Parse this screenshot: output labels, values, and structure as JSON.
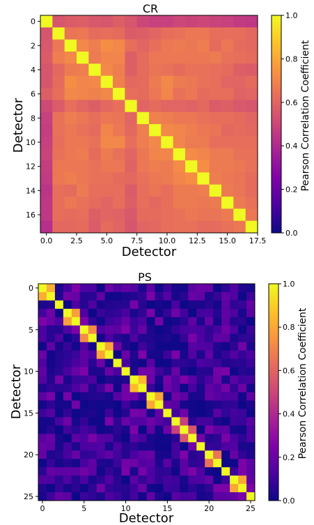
{
  "chart_data": [
    {
      "type": "heatmap",
      "title": "CR",
      "xlabel": "Detector",
      "ylabel": "Detector",
      "n": 18,
      "x_ticks": [
        "0.0",
        "2.5",
        "5.0",
        "7.5",
        "10.0",
        "12.5",
        "15.0",
        "17.5"
      ],
      "x_tick_values": [
        0,
        2.5,
        5,
        7.5,
        10,
        12.5,
        15,
        17.5
      ],
      "y_ticks": [
        "0",
        "2",
        "4",
        "6",
        "8",
        "10",
        "12",
        "14",
        "16"
      ],
      "y_tick_values": [
        0,
        2,
        4,
        6,
        8,
        10,
        12,
        14,
        16
      ],
      "colorbar": {
        "label": "Pearson Correlation Coefficient",
        "range": [
          0,
          1
        ],
        "ticks": [
          "0.0",
          "0.2",
          "0.4",
          "0.6",
          "0.8",
          "1.0"
        ]
      },
      "colormap": "plasma",
      "matrix": [
        [
          1.0,
          0.55,
          0.57,
          0.58,
          0.56,
          0.55,
          0.58,
          0.55,
          0.5,
          0.48,
          0.48,
          0.5,
          0.49,
          0.5,
          0.49,
          0.48,
          0.46,
          0.45
        ],
        [
          0.55,
          1.0,
          0.65,
          0.66,
          0.62,
          0.63,
          0.62,
          0.57,
          0.58,
          0.6,
          0.63,
          0.64,
          0.66,
          0.66,
          0.63,
          0.63,
          0.63,
          0.61
        ],
        [
          0.56,
          0.66,
          1.0,
          0.71,
          0.68,
          0.73,
          0.71,
          0.63,
          0.6,
          0.63,
          0.66,
          0.67,
          0.66,
          0.68,
          0.62,
          0.66,
          0.62,
          0.61
        ],
        [
          0.57,
          0.68,
          0.71,
          1.0,
          0.67,
          0.7,
          0.7,
          0.58,
          0.62,
          0.66,
          0.66,
          0.66,
          0.66,
          0.66,
          0.67,
          0.64,
          0.63,
          0.62
        ],
        [
          0.55,
          0.61,
          0.67,
          0.68,
          1.0,
          0.71,
          0.68,
          0.58,
          0.62,
          0.65,
          0.64,
          0.62,
          0.64,
          0.64,
          0.63,
          0.62,
          0.58,
          0.57
        ],
        [
          0.55,
          0.62,
          0.73,
          0.7,
          0.71,
          1.0,
          0.69,
          0.61,
          0.62,
          0.67,
          0.71,
          0.67,
          0.66,
          0.64,
          0.63,
          0.6,
          0.6,
          0.62
        ],
        [
          0.58,
          0.63,
          0.71,
          0.7,
          0.69,
          0.71,
          1.0,
          0.63,
          0.62,
          0.66,
          0.7,
          0.64,
          0.66,
          0.62,
          0.63,
          0.63,
          0.59,
          0.6
        ],
        [
          0.51,
          0.57,
          0.63,
          0.6,
          0.58,
          0.61,
          0.63,
          1.0,
          0.6,
          0.62,
          0.6,
          0.6,
          0.59,
          0.61,
          0.57,
          0.58,
          0.56,
          0.55
        ],
        [
          0.48,
          0.64,
          0.68,
          0.66,
          0.63,
          0.66,
          0.65,
          0.6,
          1.0,
          0.69,
          0.68,
          0.66,
          0.66,
          0.64,
          0.63,
          0.63,
          0.62,
          0.6
        ],
        [
          0.47,
          0.64,
          0.66,
          0.64,
          0.62,
          0.7,
          0.66,
          0.61,
          0.68,
          1.0,
          0.71,
          0.7,
          0.68,
          0.66,
          0.65,
          0.61,
          0.62,
          0.61
        ],
        [
          0.48,
          0.63,
          0.66,
          0.66,
          0.64,
          0.71,
          0.71,
          0.63,
          0.68,
          0.71,
          1.0,
          0.7,
          0.67,
          0.67,
          0.63,
          0.63,
          0.63,
          0.63
        ],
        [
          0.49,
          0.64,
          0.66,
          0.67,
          0.62,
          0.67,
          0.64,
          0.6,
          0.66,
          0.7,
          0.7,
          1.0,
          0.72,
          0.7,
          0.67,
          0.67,
          0.64,
          0.64
        ],
        [
          0.47,
          0.66,
          0.66,
          0.66,
          0.64,
          0.66,
          0.66,
          0.59,
          0.66,
          0.68,
          0.67,
          0.72,
          1.0,
          0.73,
          0.67,
          0.67,
          0.66,
          0.64
        ],
        [
          0.46,
          0.66,
          0.68,
          0.66,
          0.64,
          0.64,
          0.62,
          0.61,
          0.64,
          0.66,
          0.67,
          0.7,
          0.73,
          1.0,
          0.68,
          0.66,
          0.65,
          0.62
        ],
        [
          0.44,
          0.63,
          0.62,
          0.67,
          0.63,
          0.63,
          0.63,
          0.57,
          0.63,
          0.65,
          0.63,
          0.67,
          0.67,
          0.68,
          1.0,
          0.67,
          0.65,
          0.62
        ],
        [
          0.45,
          0.63,
          0.66,
          0.64,
          0.62,
          0.6,
          0.63,
          0.58,
          0.63,
          0.61,
          0.63,
          0.67,
          0.67,
          0.66,
          0.67,
          1.0,
          0.67,
          0.64
        ],
        [
          0.45,
          0.63,
          0.62,
          0.63,
          0.58,
          0.6,
          0.59,
          0.56,
          0.62,
          0.62,
          0.63,
          0.64,
          0.66,
          0.65,
          0.65,
          0.67,
          1.0,
          0.66
        ],
        [
          0.42,
          0.61,
          0.61,
          0.62,
          0.57,
          0.62,
          0.6,
          0.55,
          0.6,
          0.61,
          0.63,
          0.64,
          0.64,
          0.62,
          0.62,
          0.64,
          0.66,
          1.0
        ]
      ]
    },
    {
      "type": "heatmap",
      "title": "PS",
      "xlabel": "Detector",
      "ylabel": "Detector",
      "n": 26,
      "x_ticks": [
        "0",
        "5",
        "10",
        "15",
        "20",
        "25"
      ],
      "x_tick_values": [
        0,
        5,
        10,
        15,
        20,
        25
      ],
      "y_ticks": [
        "0",
        "5",
        "10",
        "15",
        "20",
        "25"
      ],
      "y_tick_values": [
        0,
        5,
        10,
        15,
        20,
        25
      ],
      "colorbar": {
        "label": "Pearson Correlation Coefficient",
        "range": [
          0,
          1
        ],
        "ticks": [
          "0.0",
          "0.2",
          "0.4",
          "0.6",
          "0.8",
          "1.0"
        ]
      },
      "colormap": "plasma",
      "blocks": [
        {
          "pair": [
            0,
            1
          ],
          "value": 0.82
        },
        {
          "pair": [
            3,
            4
          ],
          "value": 0.78
        },
        {
          "pair": [
            5,
            6
          ],
          "value": 0.72
        },
        {
          "pair": [
            7,
            8
          ],
          "value": 0.8
        },
        {
          "pair": [
            11,
            12
          ],
          "value": 0.85
        },
        {
          "pair": [
            13,
            14
          ],
          "value": 0.8
        },
        {
          "pair": [
            16,
            17
          ],
          "value": 0.48
        },
        {
          "pair": [
            17,
            18
          ],
          "value": 0.55
        },
        {
          "pair": [
            20,
            21
          ],
          "value": 0.65
        },
        {
          "pair": [
            23,
            24
          ],
          "value": 0.8
        }
      ],
      "off_diagonal_range": [
        0.0,
        0.25
      ]
    }
  ]
}
